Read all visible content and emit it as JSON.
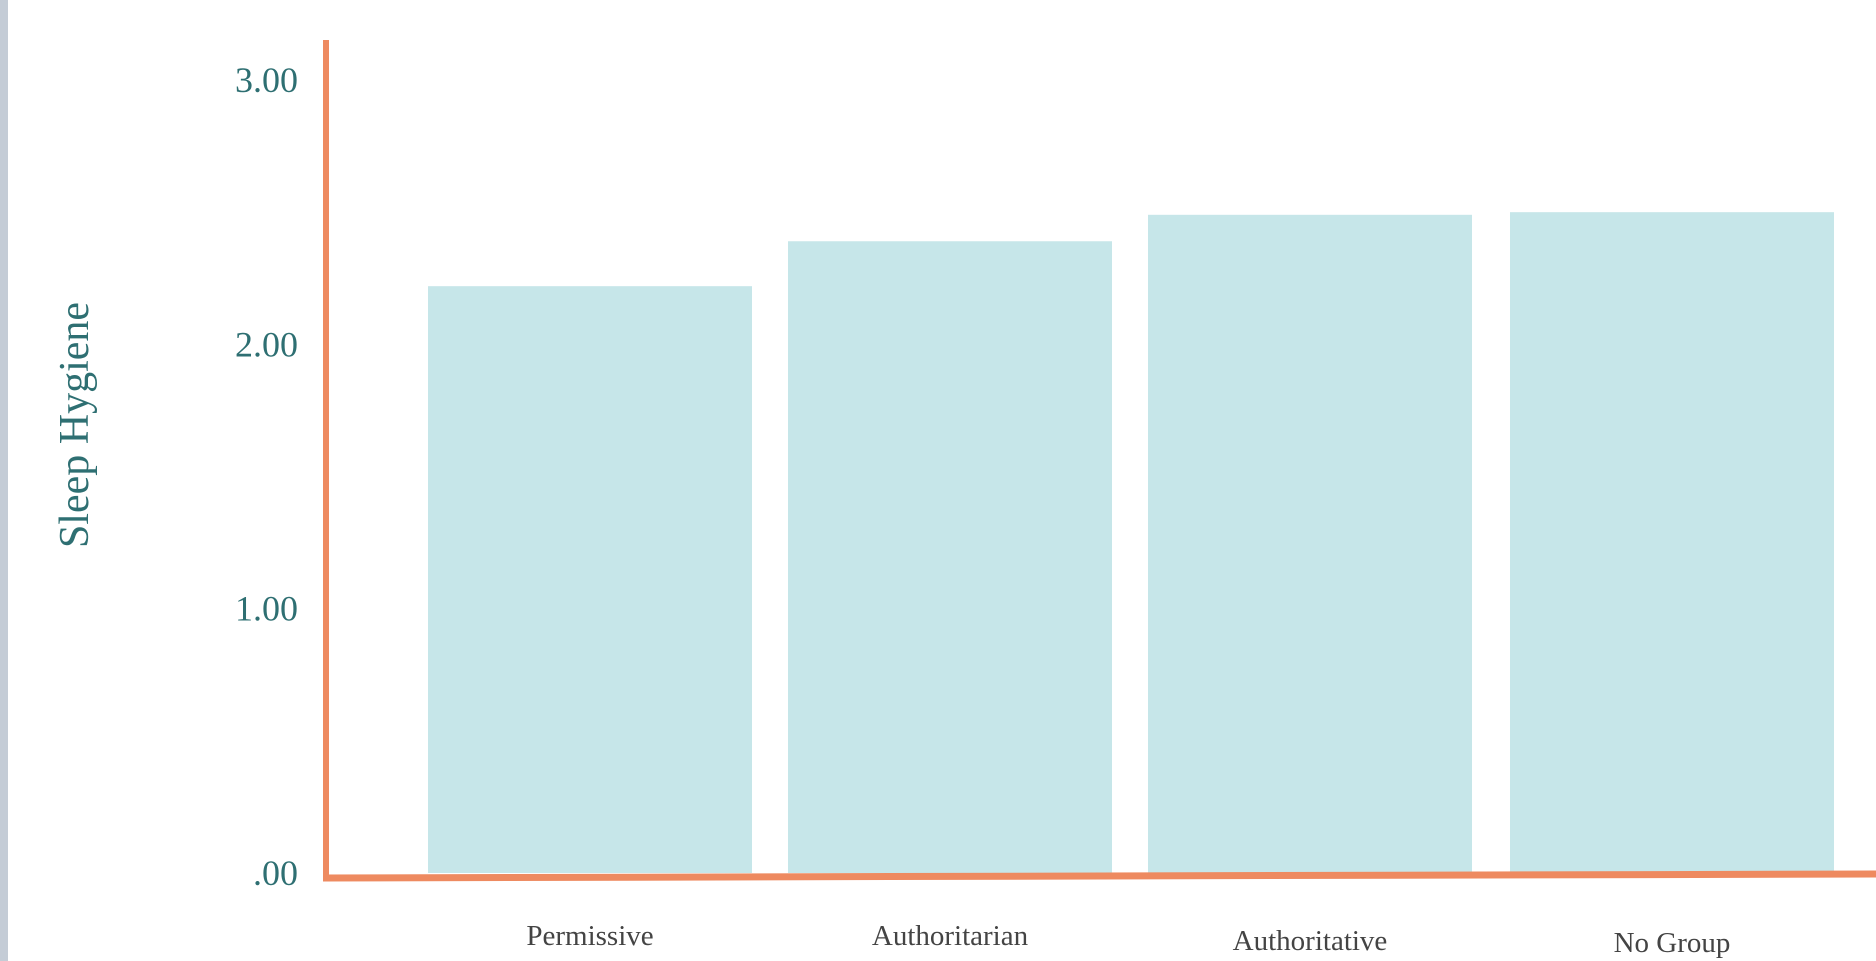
{
  "colors": {
    "bar": "#c6e6e9",
    "axis": "#ee8a60",
    "tick_text": "#2e6f72",
    "category_text": "#444444"
  },
  "chart_data": {
    "type": "bar",
    "title": "",
    "xlabel": "",
    "ylabel": "Sleep Hygiene",
    "categories": [
      "Permissive",
      "Authoritarian",
      "Authoritative",
      "No Group"
    ],
    "values": [
      2.22,
      2.39,
      2.49,
      2.5
    ],
    "ylim": [
      0,
      3
    ],
    "yticks": [
      0,
      1,
      2,
      3
    ],
    "ytick_labels": [
      ".00",
      "1.00",
      "2.00",
      "3.00"
    ],
    "grid": false,
    "legend": "none"
  }
}
